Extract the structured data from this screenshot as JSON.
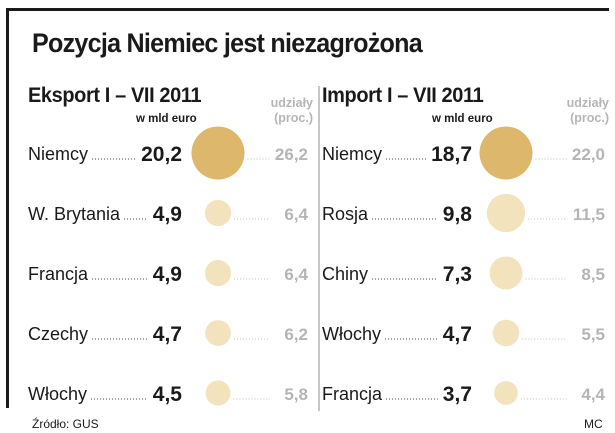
{
  "title": "Pozycja Niemiec jest niezagrożona",
  "source": "Źródło: GUS",
  "credit": "MC",
  "chart_data": [
    {
      "type": "table",
      "title": "Eksport I – VII 2011",
      "value_label": "w mld euro",
      "share_label_1": "udziały",
      "share_label_2": "(proc.)",
      "categories": [
        "Niemcy",
        "W. Brytania",
        "Francja",
        "Czechy",
        "Włochy"
      ],
      "series": [
        {
          "name": "w mld euro",
          "values": [
            20.2,
            4.9,
            4.9,
            4.7,
            4.5
          ]
        },
        {
          "name": "udziały (proc.)",
          "values": [
            26.2,
            6.4,
            6.4,
            6.2,
            5.8
          ]
        }
      ],
      "value_labels": [
        "20,2",
        "4,9",
        "4,9",
        "4,7",
        "4,5"
      ],
      "share_labels": [
        "26,2",
        "6,4",
        "6,4",
        "6,2",
        "5,8"
      ],
      "colors": {
        "highlight": "#ddb76b",
        "bubble": "#f2e3bd",
        "share_text": "#b5b5b5"
      }
    },
    {
      "type": "table",
      "title": "Import I – VII 2011",
      "value_label": "w mld euro",
      "share_label_1": "udziały",
      "share_label_2": "(proc.)",
      "categories": [
        "Niemcy",
        "Rosja",
        "Chiny",
        "Włochy",
        "Francja"
      ],
      "series": [
        {
          "name": "w mld euro",
          "values": [
            18.7,
            9.8,
            7.3,
            4.7,
            3.7
          ]
        },
        {
          "name": "udziały (proc.)",
          "values": [
            22.0,
            11.5,
            8.5,
            5.5,
            4.4
          ]
        }
      ],
      "value_labels": [
        "18,7",
        "9,8",
        "7,3",
        "4,7",
        "3,7"
      ],
      "share_labels": [
        "22,0",
        "11,5",
        "8,5",
        "5,5",
        "4,4"
      ],
      "colors": {
        "highlight": "#ddb76b",
        "bubble": "#f2e3bd",
        "share_text": "#b5b5b5"
      }
    }
  ]
}
